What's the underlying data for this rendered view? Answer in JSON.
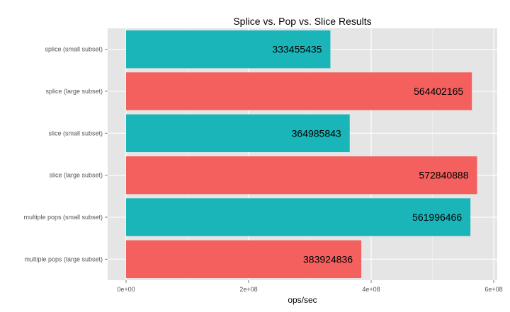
{
  "chart_data": {
    "type": "bar",
    "orientation": "horizontal",
    "title": "Splice vs. Pop vs. Slice Results",
    "xlabel": "ops/sec",
    "ylabel": "",
    "xlim": [
      0,
      600000000
    ],
    "x_ticks": [
      {
        "value": 0,
        "label": "0e+00"
      },
      {
        "value": 200000000,
        "label": "2e+08"
      },
      {
        "value": 400000000,
        "label": "4e+08"
      },
      {
        "value": 600000000,
        "label": "6e+08"
      }
    ],
    "categories": [
      "splice (small subset)",
      "splice (large subset)",
      "slice (small subset)",
      "slice (large subset)",
      "multiple pops (small subset)",
      "multiple pops (large subset)"
    ],
    "values": [
      333455435,
      564402165,
      364985843,
      572840888,
      561996466,
      383924836
    ],
    "value_labels": [
      "333455435",
      "564402165",
      "364985843",
      "572840888",
      "561996466",
      "383924836"
    ],
    "bar_groups": [
      "small",
      "large",
      "small",
      "large",
      "small",
      "large"
    ],
    "colors": {
      "small": "#1AB5B9",
      "large": "#F4605D",
      "panel": "#E5E5E5",
      "grid": "#FFFFFF"
    },
    "grid": true,
    "legend": "none"
  }
}
